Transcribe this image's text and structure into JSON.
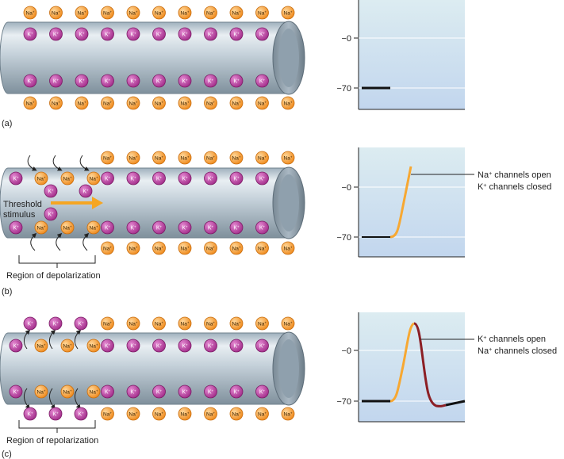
{
  "ions": {
    "na_label": "Na",
    "k_label": "K",
    "charge": "+",
    "na_color": "#f39a2b",
    "k_color": "#b8399c"
  },
  "axis": {
    "zero_label": "−0",
    "minus70_label": "−70"
  },
  "panels": [
    {
      "id": "a",
      "letter": "(a)"
    },
    {
      "id": "b",
      "letter": "(b)",
      "stimulus_label_line1": "Threshold",
      "stimulus_label_line2": "stimulus",
      "region_label": "Region of depolarization",
      "annotation_line1_ion": "Na",
      "annotation_line1_text": " channels open",
      "annotation_line2_ion": "K",
      "annotation_line2_text": " channels closed"
    },
    {
      "id": "c",
      "letter": "(c)",
      "region_label": "Region of repolarization",
      "annotation_line1_ion": "K",
      "annotation_line1_text": " channels open",
      "annotation_line2_ion": "Na",
      "annotation_line2_text": " channels closed"
    }
  ],
  "colors": {
    "axon_body": "#c3cfd8",
    "graph_top": "#dcecf1",
    "graph_bottom": "#c4d8ee",
    "rising": "#f7a832",
    "falling": "#8c1f25",
    "resting": "#111111",
    "stimulus_arrow": "#f5a623"
  }
}
